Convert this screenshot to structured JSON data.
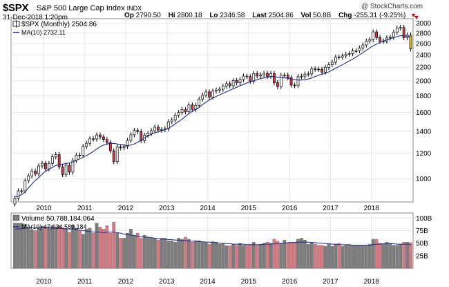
{
  "header": {
    "ticker": "$SPX",
    "name": "S&P 500 Large Cap Index",
    "exchange": "INDX",
    "datetime": "31-Dec-2018 1:20pm",
    "copyright": "@ StockCharts.com",
    "quote": {
      "open_label": "Op",
      "open": "2790.50",
      "high_label": "Hi",
      "high": "2800.18",
      "low_label": "Lo",
      "low": "2346.58",
      "last_label": "Last",
      "last": "2504.86",
      "vol_label": "Vol",
      "vol": "50.8B",
      "chg_label": "Chg",
      "chg": "-255.31 (-9.25%)",
      "chg_arrow": "▼"
    }
  },
  "price_panel": {
    "legend_series": "$SPX (Monthly) 2504.86",
    "legend_ma": "MA(10) 2732.11"
  },
  "volume_panel": {
    "legend_series": "Volume 50,788,184,064",
    "legend_ma": "MA(10) 47,034,589,184"
  },
  "colors": {
    "up": "#ffffff",
    "down": "#d43a4a",
    "last_bar": "#f2c200",
    "ma": "#1f2a8a",
    "vol_up": "#7d7d7d",
    "vol_down": "#d87a82",
    "grid": "#e6e6e6"
  },
  "chart_data": [
    {
      "type": "candlestick",
      "title": "$SPX S&P 500 Large Cap Index",
      "y_scale": "log",
      "ylim": [
        850,
        3100
      ],
      "y_ticks": [
        1000,
        1200,
        1400,
        1600,
        1800,
        2000,
        2200,
        2400,
        2600,
        2800,
        3000
      ],
      "x_ticks": [
        "2010",
        "2011",
        "2012",
        "2013",
        "2014",
        "2015",
        "2016",
        "2017",
        "2018"
      ],
      "grid": true,
      "start": "2009-04",
      "interval": "monthly",
      "close": [
        872,
        919,
        919,
        987,
        1021,
        1057,
        1036,
        1096,
        1116,
        1074,
        1115,
        1169,
        1187,
        1089,
        1031,
        1101,
        1049,
        1141,
        1183,
        1181,
        1258,
        1286,
        1327,
        1326,
        1364,
        1345,
        1321,
        1293,
        1219,
        1131,
        1254,
        1247,
        1258,
        1312,
        1366,
        1408,
        1397,
        1310,
        1362,
        1379,
        1406,
        1441,
        1412,
        1416,
        1426,
        1498,
        1515,
        1569,
        1598,
        1631,
        1607,
        1686,
        1633,
        1682,
        1757,
        1806,
        1848,
        1783,
        1859,
        1872,
        1884,
        1924,
        1960,
        1931,
        2003,
        1972,
        2018,
        2067,
        2059,
        1995,
        2105,
        2068,
        2086,
        2107,
        2063,
        2104,
        1972,
        1920,
        2079,
        2080,
        2044,
        1940,
        1932,
        2060,
        2065,
        2097,
        2099,
        2174,
        2171,
        2168,
        2126,
        2199,
        2239,
        2279,
        2364,
        2363,
        2384,
        2412,
        2423,
        2470,
        2472,
        2519,
        2575,
        2648,
        2674,
        2824,
        2714,
        2641,
        2648,
        2705,
        2718,
        2816,
        2901,
        2914,
        2712,
        2760,
        2505
      ],
      "ma10": [
        880,
        885,
        895,
        912,
        940,
        965,
        990,
        1010,
        1035,
        1055,
        1070,
        1085,
        1100,
        1105,
        1110,
        1115,
        1120,
        1128,
        1140,
        1152,
        1165,
        1180,
        1195,
        1215,
        1235,
        1255,
        1270,
        1280,
        1285,
        1285,
        1280,
        1275,
        1270,
        1265,
        1270,
        1280,
        1295,
        1315,
        1335,
        1355,
        1370,
        1385,
        1395,
        1405,
        1415,
        1430,
        1450,
        1475,
        1500,
        1525,
        1555,
        1585,
        1610,
        1635,
        1655,
        1690,
        1720,
        1745,
        1770,
        1790,
        1810,
        1830,
        1850,
        1870,
        1890,
        1910,
        1930,
        1950,
        1970,
        1985,
        2000,
        2015,
        2030,
        2040,
        2050,
        2060,
        2060,
        2050,
        2045,
        2040,
        2035,
        2025,
        2015,
        2010,
        2010,
        2015,
        2025,
        2040,
        2060,
        2080,
        2095,
        2110,
        2130,
        2155,
        2185,
        2210,
        2240,
        2270,
        2300,
        2330,
        2365,
        2400,
        2440,
        2480,
        2520,
        2560,
        2590,
        2620,
        2645,
        2670,
        2690,
        2710,
        2730,
        2750,
        2750,
        2740,
        2732
      ],
      "legend": [
        "$SPX (Monthly) 2504.86",
        "MA(10) 2732.11"
      ]
    },
    {
      "type": "bar",
      "title": "Volume",
      "ylim": [
        0,
        110
      ],
      "y_unit": "B",
      "y_ticks": [
        "25B",
        "50B",
        "75B",
        "100B"
      ],
      "x_ticks": [
        "2010",
        "2011",
        "2012",
        "2013",
        "2014",
        "2015",
        "2016",
        "2017",
        "2018"
      ],
      "values": [
        90,
        90,
        90,
        88,
        80,
        77,
        75,
        80,
        84,
        82,
        80,
        85,
        82,
        85,
        80,
        78,
        72,
        86,
        80,
        75,
        68,
        78,
        80,
        70,
        90,
        82,
        78,
        85,
        70,
        92,
        70,
        60,
        60,
        70,
        78,
        66,
        70,
        60,
        66,
        62,
        60,
        60,
        56,
        60,
        60,
        55,
        55,
        52,
        60,
        58,
        62,
        58,
        52,
        55,
        55,
        52,
        52,
        48,
        53,
        52,
        48,
        50,
        45,
        45,
        47,
        46,
        50,
        46,
        46,
        48,
        52,
        46,
        48,
        50,
        52,
        50,
        58,
        54,
        50,
        56,
        50,
        52,
        52,
        58,
        60,
        56,
        48,
        52,
        48,
        46,
        46,
        44,
        48,
        44,
        48,
        50,
        44,
        46,
        46,
        45,
        46,
        46,
        46,
        46,
        48,
        58,
        58,
        50,
        48,
        52,
        50,
        46,
        46,
        48,
        52,
        52,
        51
      ],
      "ma10": [
        78,
        78,
        79,
        80,
        81,
        82,
        82,
        82,
        82,
        82,
        82,
        81,
        80,
        80,
        79,
        78,
        78,
        78,
        77,
        76,
        75,
        74,
        73,
        72,
        72,
        72,
        71,
        72,
        72,
        72,
        71,
        70,
        68,
        67,
        66,
        65,
        64,
        63,
        62,
        62,
        61,
        60,
        59,
        58,
        58,
        57,
        57,
        56,
        56,
        55,
        55,
        54,
        54,
        54,
        53,
        53,
        52,
        52,
        51,
        51,
        50,
        50,
        49,
        49,
        48,
        48,
        48,
        48,
        47,
        47,
        47,
        47,
        47,
        48,
        48,
        48,
        49,
        49,
        50,
        50,
        51,
        51,
        51,
        52,
        52,
        52,
        52,
        51,
        51,
        50,
        50,
        49,
        49,
        48,
        48,
        47,
        47,
        47,
        47,
        46,
        46,
        46,
        46,
        46,
        46,
        47,
        48,
        48,
        49,
        49,
        49,
        49,
        48,
        48,
        48,
        48,
        47
      ],
      "legend": [
        "Volume 50,788,184,064",
        "MA(10) 47,034,589,184"
      ]
    }
  ]
}
